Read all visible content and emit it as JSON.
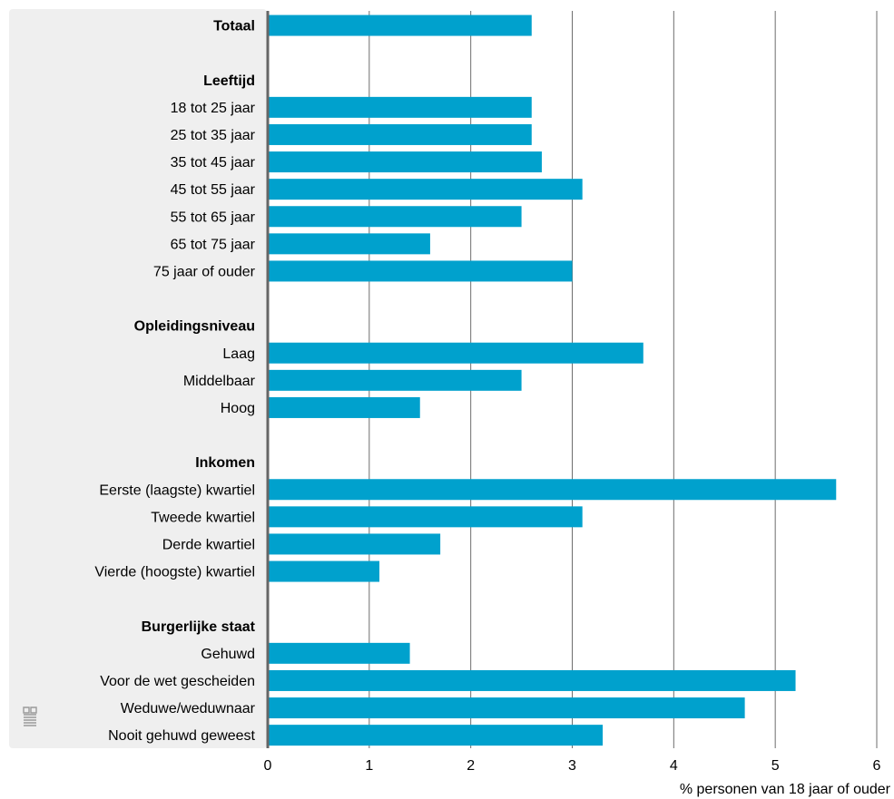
{
  "chart_data": {
    "type": "bar",
    "orientation": "horizontal",
    "categories": [
      "Totaal",
      "",
      "Leeftijd",
      "18 tot 25 jaar",
      "25 tot 35 jaar",
      "35 tot 45 jaar",
      "45 tot 55 jaar",
      "55 tot 65 jaar",
      "65 tot 75 jaar",
      "75 jaar of ouder",
      "",
      "Opleidingsniveau",
      "Laag",
      "Middelbaar",
      "Hoog",
      "",
      "Inkomen",
      "Eerste (laagste) kwartiel",
      "Tweede kwartiel",
      "Derde kwartiel",
      "Vierde (hoogste) kwartiel",
      "",
      "Burgerlijke staat",
      "Gehuwd",
      "Voor de wet gescheiden",
      "Weduwe/weduwnaar",
      "Nooit gehuwd geweest"
    ],
    "bold_categories": [
      "Totaal",
      "Leeftijd",
      "Opleidingsniveau",
      "Inkomen",
      "Burgerlijke staat"
    ],
    "values": [
      2.6,
      null,
      null,
      2.6,
      2.6,
      2.7,
      3.1,
      2.5,
      1.6,
      3.0,
      null,
      null,
      3.7,
      2.5,
      1.5,
      null,
      null,
      5.6,
      3.1,
      1.7,
      1.1,
      null,
      null,
      1.4,
      5.2,
      4.7,
      3.3
    ],
    "xlabel": "% personen van 18 jaar of ouder",
    "xlim": [
      0,
      6
    ],
    "xticks": [
      "0",
      "1",
      "2",
      "3",
      "4",
      "5",
      "6"
    ],
    "grid": true,
    "colors": {
      "bar": "#00a1cd",
      "grid": "#6e6e6e",
      "axis": "#666666",
      "label_panel": "#efefef"
    }
  },
  "logo": {
    "name": "cbs-logo-icon"
  }
}
